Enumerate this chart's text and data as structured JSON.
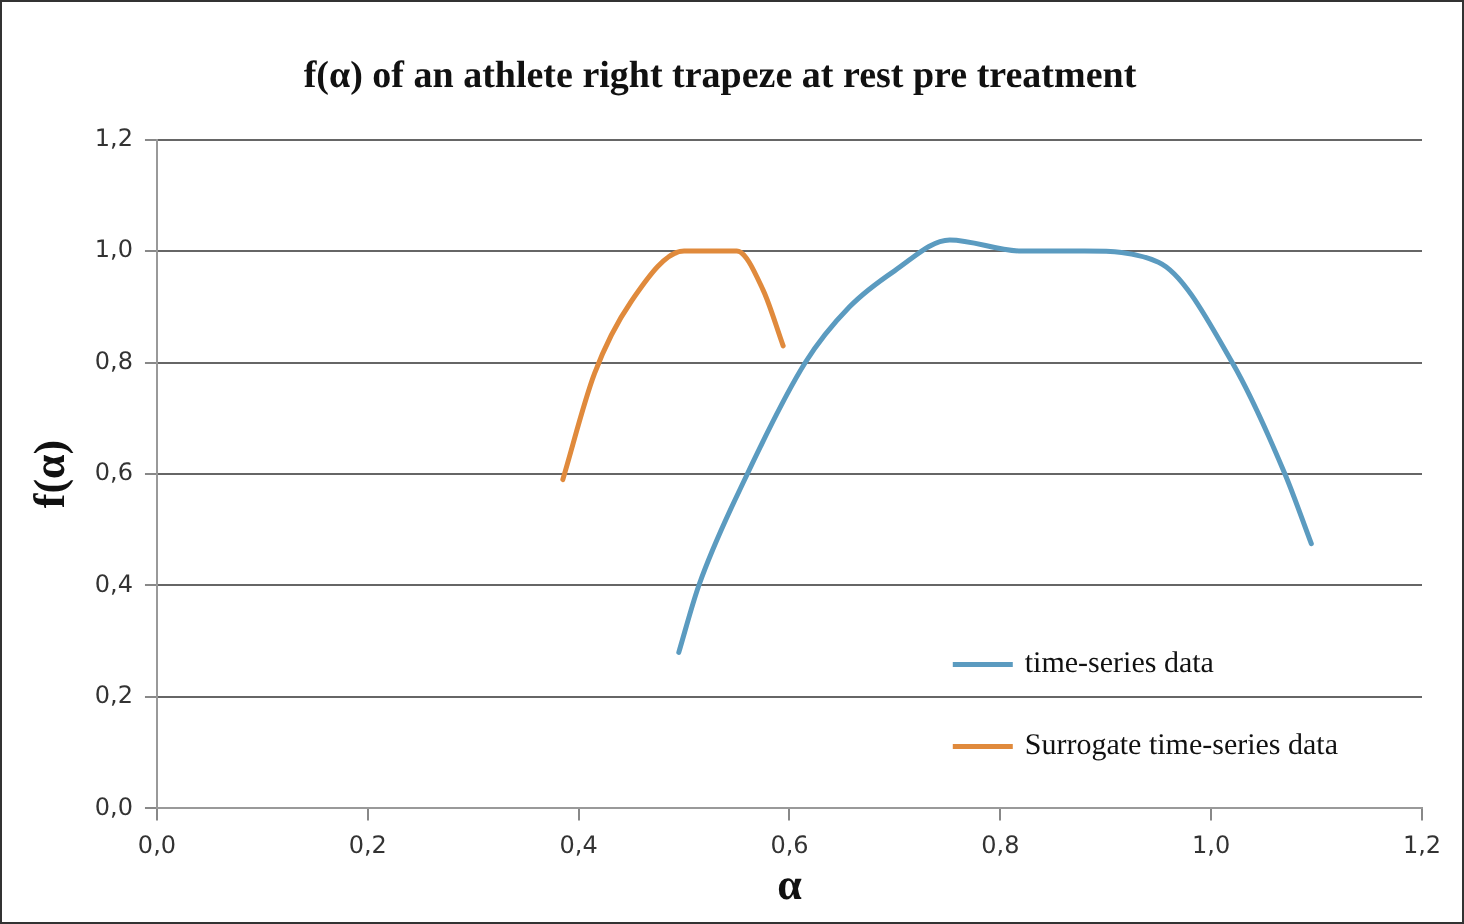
{
  "chart_data": {
    "type": "line",
    "title": "f(α) of an athlete right trapeze at rest pre treatment",
    "xlabel": "α",
    "ylabel": "f(α)",
    "xlim": [
      0,
      1.2
    ],
    "xticks": [
      {
        "value": 0,
        "label": "0,0"
      },
      {
        "value": 0.2,
        "label": "0,2"
      },
      {
        "value": 0.4,
        "label": "0,4"
      },
      {
        "value": 0.6,
        "label": "0,6"
      },
      {
        "value": 0.8,
        "label": "0,8"
      },
      {
        "value": 1,
        "label": "1,0"
      },
      {
        "value": 1.2,
        "label": "1,2"
      }
    ],
    "ylim": [
      0,
      1.2
    ],
    "yticks": [
      {
        "value": 0,
        "label": "0,0"
      },
      {
        "value": 0.2,
        "label": "0,2"
      },
      {
        "value": 0.4,
        "label": "0,4"
      },
      {
        "value": 0.6,
        "label": "0,6"
      },
      {
        "value": 0.8,
        "label": "0,8"
      },
      {
        "value": 1,
        "label": "1,0"
      },
      {
        "value": 1.2,
        "label": "1,2"
      }
    ],
    "grid": "y",
    "legend": "bottom right",
    "marker": "none",
    "line_style": "solid",
    "series": [
      {
        "name": "time-series data",
        "color": "#5b9bc0",
        "x": [
          0.495,
          0.514,
          0.56,
          0.615,
          0.657,
          0.7,
          0.752,
          0.82,
          0.88,
          0.95,
          1.02,
          1.07,
          1.095
        ],
        "values": [
          0.28,
          0.4,
          0.6,
          0.8,
          0.9,
          0.965,
          1.02,
          1.0,
          1.0,
          0.98,
          0.8,
          0.6,
          0.475
        ]
      },
      {
        "name": "Surrogate time-series data",
        "color": "#e08a3c",
        "x": [
          0.385,
          0.415,
          0.45,
          0.5,
          0.55,
          0.575,
          0.594
        ],
        "values": [
          0.59,
          0.78,
          0.91,
          1.0,
          1.0,
          0.93,
          0.83
        ]
      }
    ]
  }
}
